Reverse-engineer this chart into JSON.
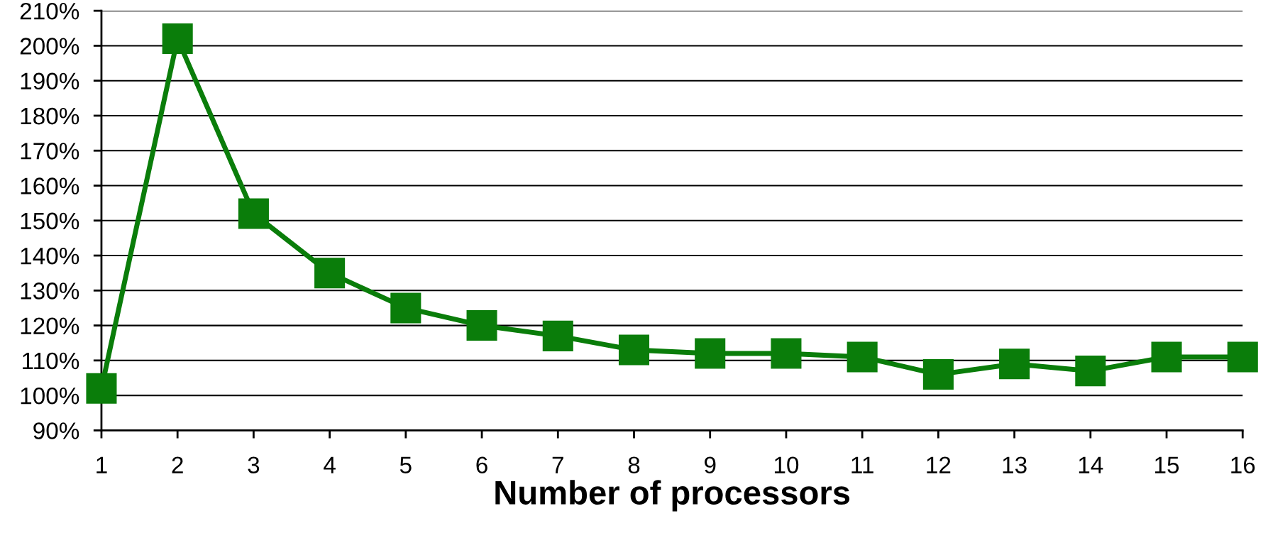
{
  "chart_data": {
    "type": "line",
    "xlabel": "Number of processors",
    "x": [
      1,
      2,
      3,
      4,
      5,
      6,
      7,
      8,
      9,
      10,
      11,
      12,
      13,
      14,
      15,
      16
    ],
    "series": [
      {
        "color": "#0a7d0a",
        "values": [
          102,
          202,
          152,
          135,
          125,
          120,
          117,
          113,
          112,
          112,
          111,
          106,
          109,
          107,
          111,
          111
        ]
      }
    ],
    "xlim": [
      1,
      16
    ],
    "xticks": [
      1,
      2,
      3,
      4,
      5,
      6,
      7,
      8,
      9,
      10,
      11,
      12,
      13,
      14,
      15,
      16
    ],
    "ylim": [
      90,
      210
    ],
    "yticks": [
      {
        "value": 90,
        "label": "90%"
      },
      {
        "value": 100,
        "label": "100%"
      },
      {
        "value": 110,
        "label": "110%"
      },
      {
        "value": 120,
        "label": "120%"
      },
      {
        "value": 130,
        "label": "130%"
      },
      {
        "value": 140,
        "label": "140%"
      },
      {
        "value": 150,
        "label": "150%"
      },
      {
        "value": 160,
        "label": "160%"
      },
      {
        "value": 170,
        "label": "170%"
      },
      {
        "value": 180,
        "label": "180%"
      },
      {
        "value": 190,
        "label": "190%"
      },
      {
        "value": 200,
        "label": "200%"
      },
      {
        "value": 210,
        "label": "210%"
      }
    ],
    "grid": "y",
    "marker": "square",
    "line_style": "solid"
  }
}
